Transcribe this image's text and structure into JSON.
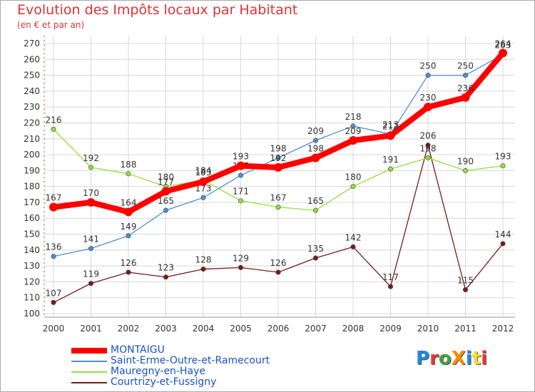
{
  "chart_data": {
    "type": "line",
    "title": "Evolution des Impôts locaux par Habitant",
    "subtitle": "(en € et par an)",
    "categories": [
      "2000",
      "2001",
      "2002",
      "2003",
      "2004",
      "2005",
      "2006",
      "2007",
      "2008",
      "2009",
      "2010",
      "2011",
      "2012"
    ],
    "ylim": [
      100,
      270
    ],
    "yticks": [
      100,
      110,
      120,
      130,
      140,
      150,
      160,
      170,
      180,
      190,
      200,
      210,
      220,
      230,
      240,
      250,
      260,
      270
    ],
    "grid": true,
    "legend_position": "bottom-left",
    "series": [
      {
        "name": "MONTAIGU",
        "color": "#ff0000",
        "values": [
          167,
          170,
          164,
          177,
          183,
          193,
          192,
          198,
          209,
          212,
          230,
          236,
          264
        ]
      },
      {
        "name": "Saint-Erme-Outre-et-Ramecourt",
        "color": "#4d90d0",
        "values": [
          136,
          141,
          149,
          165,
          173,
          187,
          198,
          209,
          218,
          213,
          250,
          250,
          263
        ]
      },
      {
        "name": "Mauregny-en-Haye",
        "color": "#90e040",
        "values": [
          216,
          192,
          188,
          180,
          184,
          171,
          167,
          165,
          180,
          191,
          198,
          190,
          193
        ]
      },
      {
        "name": "Courtrizy-et-Fussigny",
        "color": "#7a1a1a",
        "values": [
          107,
          119,
          126,
          123,
          128,
          129,
          126,
          135,
          142,
          117,
          206,
          115,
          144
        ]
      }
    ]
  },
  "logo": {
    "text": "ProXiti",
    "letters": [
      "P",
      "r",
      "o",
      "X",
      "i",
      "t",
      "i"
    ],
    "colors": [
      "#1e88e5",
      "#e53935",
      "#43a047",
      "#fb8c00",
      "#1e88e5",
      "#fdd835",
      "#e53935"
    ]
  }
}
